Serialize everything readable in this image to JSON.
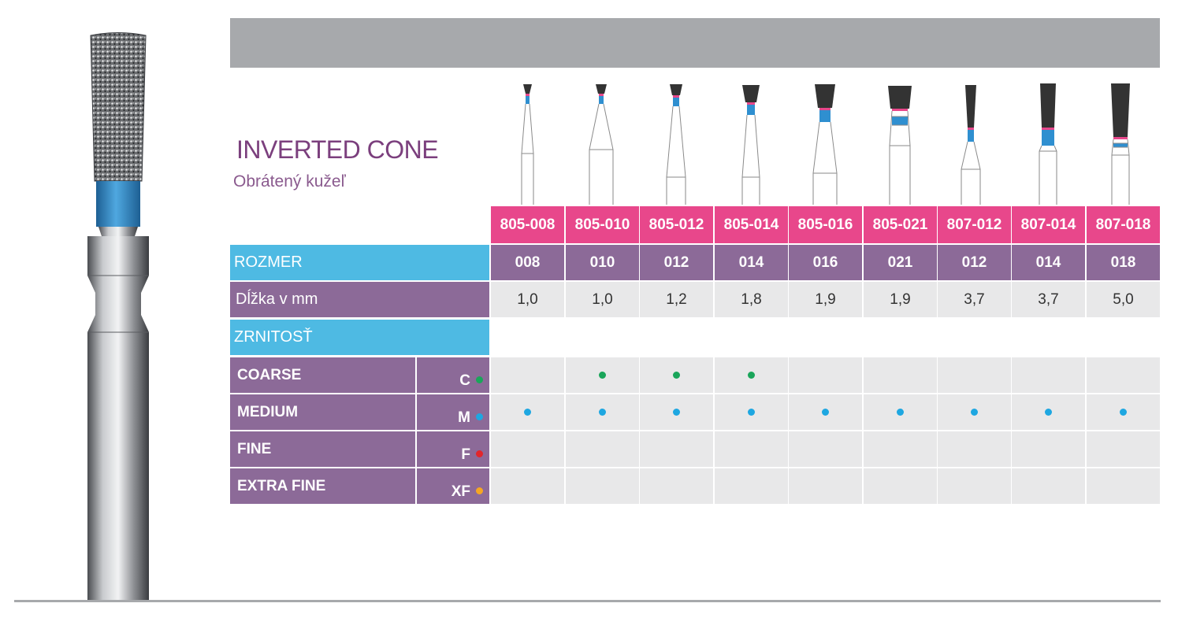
{
  "header": {
    "title": "INVERTED CONE",
    "subtitle": "Obrátený kužeľ"
  },
  "rows": {
    "size_label": "ROZMER",
    "length_label": "Dĺžka v mm",
    "grit_label": "ZRNITOSŤ"
  },
  "columns": [
    {
      "code": "805-008",
      "size": "008",
      "length": "1,0"
    },
    {
      "code": "805-010",
      "size": "010",
      "length": "1,0"
    },
    {
      "code": "805-012",
      "size": "012",
      "length": "1,2"
    },
    {
      "code": "805-014",
      "size": "014",
      "length": "1,8"
    },
    {
      "code": "805-016",
      "size": "016",
      "length": "1,9"
    },
    {
      "code": "805-021",
      "size": "021",
      "length": "1,9"
    },
    {
      "code": "807-012",
      "size": "012",
      "length": "3,7"
    },
    {
      "code": "807-014",
      "size": "014",
      "length": "3,7"
    },
    {
      "code": "807-018",
      "size": "018",
      "length": "5,0"
    }
  ],
  "grits": [
    {
      "name": "COARSE",
      "code": "C",
      "color": "#1aa55a",
      "availability": [
        false,
        true,
        true,
        true,
        false,
        false,
        false,
        false,
        false
      ]
    },
    {
      "name": "MEDIUM",
      "code": "M",
      "color": "#1ea7e1",
      "availability": [
        true,
        true,
        true,
        true,
        true,
        true,
        true,
        true,
        true
      ]
    },
    {
      "name": "FINE",
      "code": "F",
      "color": "#e2262b",
      "availability": [
        false,
        false,
        false,
        false,
        false,
        false,
        false,
        false,
        false
      ]
    },
    {
      "name": "EXTRA FINE",
      "code": "XF",
      "color": "#f5a623",
      "availability": [
        false,
        false,
        false,
        false,
        false,
        false,
        false,
        false,
        false
      ]
    }
  ],
  "colors": {
    "accent_pink": "#e8478b",
    "purple": "#8c6a98",
    "blue": "#4ebae3",
    "band_blue": "#2f8fd0"
  }
}
